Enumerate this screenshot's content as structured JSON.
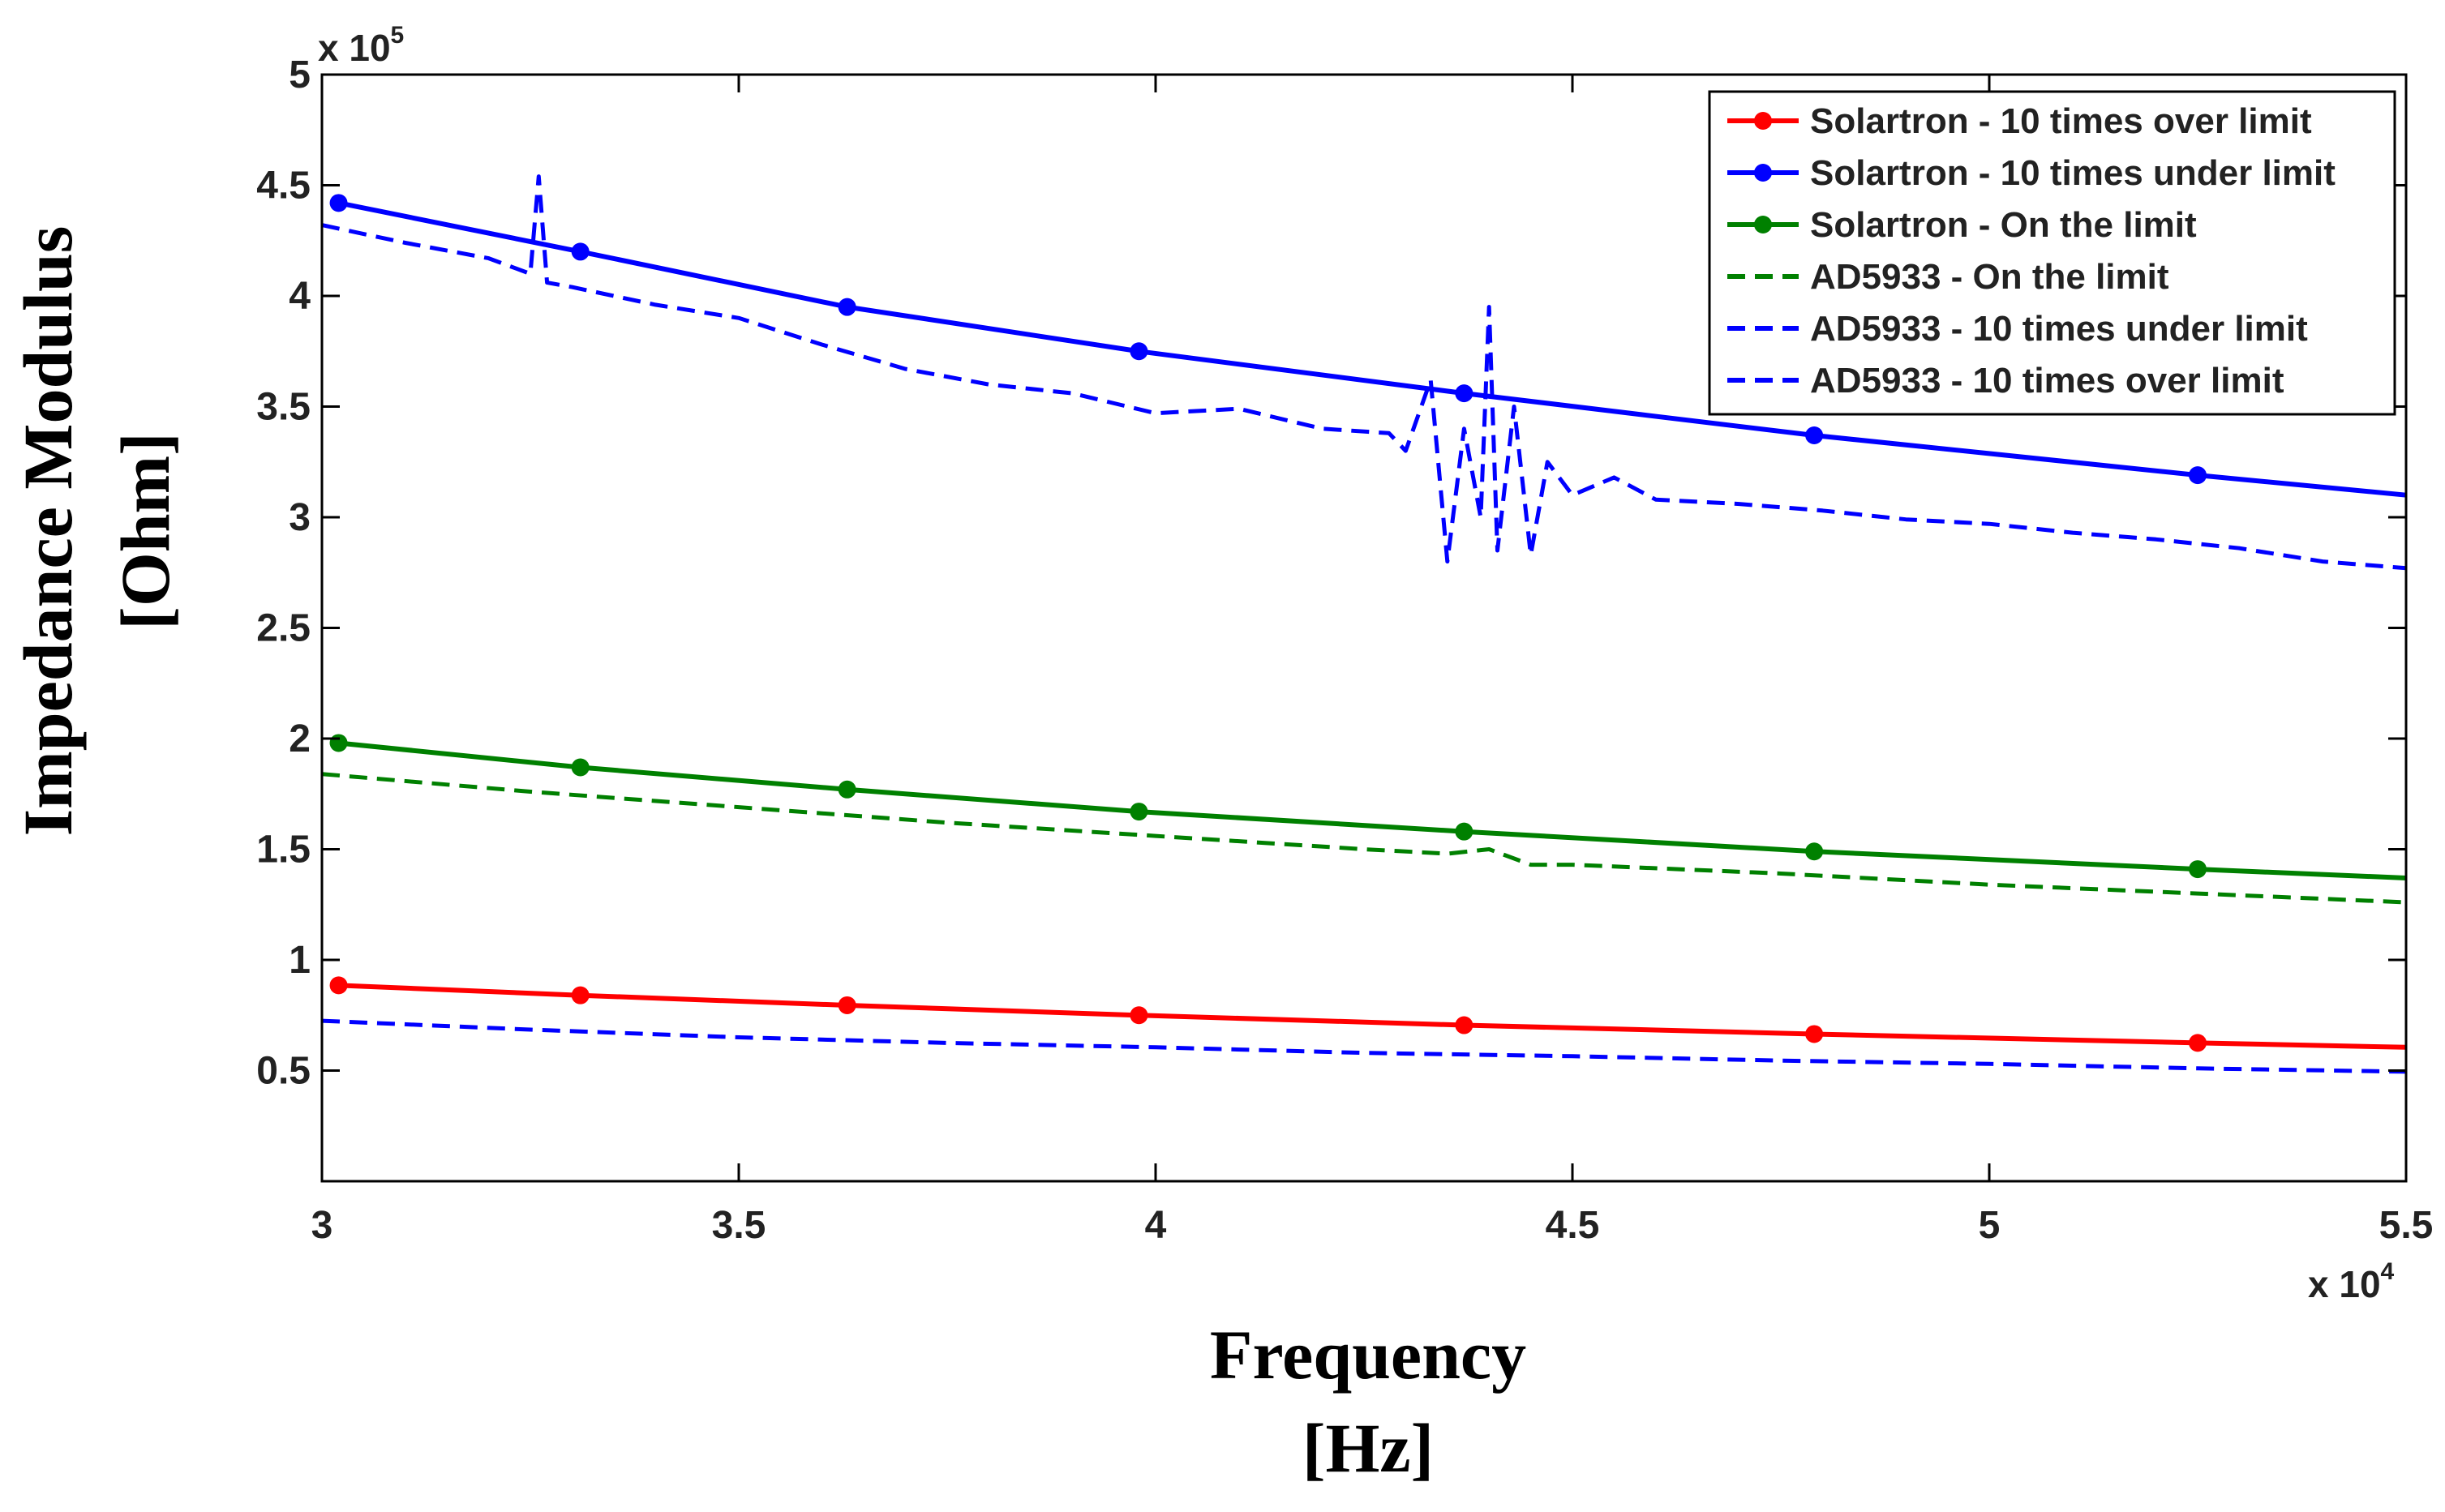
{
  "chart_data": {
    "type": "line",
    "title": "",
    "xlabel_lines": [
      "Frequency",
      "[Hz]"
    ],
    "ylabel_lines": [
      "Impedance Modulus",
      "[Ohm]"
    ],
    "x_multiplier_label": "x 10",
    "x_multiplier_exponent": "4",
    "y_multiplier_label": "x 10",
    "y_multiplier_exponent": "5",
    "xlim": [
      30000,
      55000
    ],
    "ylim": [
      0,
      500000
    ],
    "x_ticks": [
      30000,
      35000,
      40000,
      45000,
      50000,
      55000
    ],
    "x_tick_labels": [
      "3",
      "3.5",
      "4",
      "4.5",
      "5",
      "5.5"
    ],
    "y_ticks": [
      50000,
      100000,
      150000,
      200000,
      250000,
      300000,
      350000,
      400000,
      450000,
      500000
    ],
    "y_tick_labels": [
      "0.5",
      "1",
      "1.5",
      "2",
      "2.5",
      "3",
      "3.5",
      "4",
      "4.5",
      "5"
    ],
    "grid": false,
    "legend_position": "top-right",
    "series": [
      {
        "name": "Solartron - 10 times over limit",
        "color": "#ff0000",
        "style": "solid-marker",
        "x": [
          30200,
          33100,
          36300,
          39800,
          43700,
          47900,
          52500,
          55000
        ],
        "y": [
          88500,
          84000,
          79500,
          75000,
          70500,
          66500,
          62500,
          60500
        ]
      },
      {
        "name": "Solartron - 10 times under limit",
        "color": "#0000ff",
        "style": "solid-marker",
        "x": [
          30200,
          33100,
          36300,
          39800,
          43700,
          47900,
          52500,
          55000
        ],
        "y": [
          442000,
          420000,
          395000,
          375000,
          356000,
          337000,
          319000,
          310000
        ]
      },
      {
        "name": "Solartron - On the limit",
        "color": "#008000",
        "style": "solid-marker",
        "x": [
          30200,
          33100,
          36300,
          39800,
          43700,
          47900,
          52500,
          55000
        ],
        "y": [
          198000,
          187000,
          177000,
          167000,
          158000,
          149000,
          141000,
          137000
        ]
      },
      {
        "name": "AD5933 - On the limit",
        "color": "#008000",
        "style": "dashed",
        "x": [
          30000,
          32500,
          35000,
          37500,
          40000,
          42500,
          43500,
          44000,
          44500,
          45000,
          47500,
          50000,
          52500,
          55000
        ],
        "y": [
          184000,
          176000,
          169000,
          162000,
          156000,
          150000,
          148000,
          150000,
          143000,
          143000,
          139000,
          134000,
          130000,
          126000
        ]
      },
      {
        "name": "AD5933 - 10 times under limit",
        "color": "#0000ff",
        "style": "dashed",
        "x": [
          30000,
          31000,
          32000,
          32500,
          32600,
          32700,
          33000,
          34000,
          35000,
          36000,
          37000,
          38000,
          39000,
          40000,
          41000,
          42000,
          42800,
          43000,
          43300,
          43500,
          43700,
          43900,
          44000,
          44100,
          44300,
          44500,
          44700,
          45000,
          45500,
          46000,
          47000,
          48000,
          49000,
          50000,
          51000,
          52000,
          53000,
          54000,
          55000
        ],
        "y": [
          432000,
          424000,
          417000,
          410000,
          454000,
          406000,
          404000,
          396000,
          390000,
          378000,
          367000,
          360000,
          356000,
          347000,
          349000,
          340000,
          338000,
          330000,
          362000,
          280000,
          340000,
          300000,
          395000,
          285000,
          350000,
          283000,
          325000,
          310000,
          318000,
          308000,
          306000,
          303000,
          299000,
          297000,
          293000,
          290000,
          286000,
          280000,
          277000
        ]
      },
      {
        "name": "AD5933 - 10 times over limit",
        "color": "#0000ff",
        "style": "dashed",
        "x": [
          30000,
          32500,
          35000,
          37500,
          40000,
          42500,
          45000,
          47500,
          50000,
          52500,
          55000
        ],
        "y": [
          72500,
          68500,
          65000,
          62500,
          60500,
          58000,
          56500,
          54500,
          53000,
          51000,
          49500
        ]
      }
    ]
  }
}
